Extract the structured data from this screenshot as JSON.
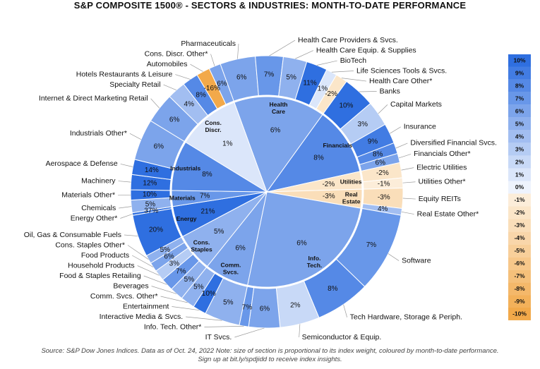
{
  "chart_data": {
    "type": "sunburst",
    "title": "S&P COMPOSITE 1500® - SECTORS & INDUSTRIES: MONTH-TO-DATE PERFORMANCE",
    "footer_line1": "Source: S&P Dow Jones Indices. Data as of Oct. 24, 2022 Note: size of section is proportional to its index weight, coloured by month-to-date performance.",
    "footer_line2": "Sign up at bit.ly/spdjidd to receive index insights.",
    "sectors": [
      {
        "name": "Health Care",
        "value": 6,
        "label_lines": [
          "Health",
          "Care"
        ],
        "weight": 15.5,
        "industries": [
          {
            "name": "Pharmaceuticals",
            "value": 6,
            "weight": 4.2
          },
          {
            "name": "Health Care Providers & Svcs.",
            "value": 7,
            "weight": 3.3
          },
          {
            "name": "Health Care Equip. & Supplies",
            "value": 5,
            "weight": 2.8
          },
          {
            "name": "BioTech",
            "value": 11,
            "weight": 2.5
          },
          {
            "name": "Life Sciences Tools & Svcs.",
            "value": 1,
            "weight": 1.3
          },
          {
            "name": "Health Care Other*",
            "value": -2,
            "weight": 1.4
          }
        ]
      },
      {
        "name": "Financials",
        "value": 8,
        "label_lines": [
          "Financials"
        ],
        "weight": 11.6,
        "industries": [
          {
            "name": "Banks",
            "value": 10,
            "weight": 3.8
          },
          {
            "name": "Capital Markets",
            "value": 3,
            "weight": 3.0
          },
          {
            "name": "Insurance",
            "value": 9,
            "weight": 2.4
          },
          {
            "name": "Diversified Financial Svcs.",
            "value": 8,
            "weight": 1.3
          },
          {
            "name": "Financials Other*",
            "value": 6,
            "weight": 1.1
          }
        ]
      },
      {
        "name": "Utilities",
        "value": -2,
        "label_lines": [
          "Utilities"
        ],
        "weight": 3.0,
        "industries": [
          {
            "name": "Electric Utilities",
            "value": -2,
            "weight": 1.8
          },
          {
            "name": "Utilities Other*",
            "value": -1,
            "weight": 1.2
          }
        ]
      },
      {
        "name": "Real Estate",
        "value": -3,
        "label_lines": [
          "Real",
          "Estate"
        ],
        "weight": 3.2,
        "industries": [
          {
            "name": "Equity REITs",
            "value": -3,
            "weight": 2.4
          },
          {
            "name": "Real Estate Other*",
            "value": 4,
            "weight": 0.8
          }
        ]
      },
      {
        "name": "Info. Tech.",
        "value": 6,
        "label_lines": [
          "Info.",
          "Tech."
        ],
        "weight": 25.5,
        "industries": [
          {
            "name": "Software",
            "value": 7,
            "weight": 9.5
          },
          {
            "name": "Tech Hardware, Storage & Periph.",
            "value": 8,
            "weight": 6.5
          },
          {
            "name": "Semiconductor & Equip.",
            "value": 2,
            "weight": 4.7
          },
          {
            "name": "IT Svcs.",
            "value": 6,
            "weight": 3.7
          },
          {
            "name": "Info. Tech. Other*",
            "value": 7,
            "weight": 1.1
          }
        ]
      },
      {
        "name": "Comm. Svcs.",
        "value": 6,
        "label_lines": [
          "Comm.",
          "Svcs."
        ],
        "weight": 7.5,
        "industries": [
          {
            "name": "Interactive Media & Svcs.",
            "value": 5,
            "weight": 4.2
          },
          {
            "name": "Entertainment",
            "value": 10,
            "weight": 1.6
          },
          {
            "name": "Comm. Svcs. Other*",
            "value": 5,
            "weight": 1.7
          }
        ]
      },
      {
        "name": "Cons. Staples",
        "value": 5,
        "label_lines": [
          "Cons.",
          "Staples"
        ],
        "weight": 6.5,
        "industries": [
          {
            "name": "Beverages",
            "value": 5,
            "weight": 1.6
          },
          {
            "name": "Food & Staples Retailing",
            "value": 7,
            "weight": 1.5
          },
          {
            "name": "Household Products",
            "value": 3,
            "weight": 1.3
          },
          {
            "name": "Food Products",
            "value": 6,
            "weight": 1.1
          },
          {
            "name": "Cons. Staples Other*",
            "value": 5,
            "weight": 1.0
          }
        ]
      },
      {
        "name": "Energy",
        "value": 21,
        "label_lines": [
          "Energy"
        ],
        "weight": 5.3,
        "industries": [
          {
            "name": "Oil, Gas & Consumable Fuels",
            "value": 20,
            "weight": 5.0
          },
          {
            "name": "Energy Other*",
            "value": 37,
            "weight": 0.3
          }
        ]
      },
      {
        "name": "Materials",
        "value": 7,
        "label_lines": [
          "Materials"
        ],
        "weight": 2.7,
        "industries": [
          {
            "name": "Chemicals",
            "value": 5,
            "weight": 1.5
          },
          {
            "name": "Materials Other*",
            "value": 10,
            "weight": 1.2
          }
        ]
      },
      {
        "name": "Industrials",
        "value": 8,
        "label_lines": [
          "Industrials"
        ],
        "weight": 8.5,
        "industries": [
          {
            "name": "Machinery",
            "value": 12,
            "weight": 1.8
          },
          {
            "name": "Aerospace & Defense",
            "value": 14,
            "weight": 1.8
          },
          {
            "name": "Industrials Other*",
            "value": 6,
            "weight": 4.9
          }
        ]
      },
      {
        "name": "Cons. Discr.",
        "value": 1,
        "label_lines": [
          "Cons.",
          "Discr."
        ],
        "weight": 10.7,
        "industries": [
          {
            "name": "Internet & Direct Marketing Retail",
            "value": 6,
            "weight": 3.6
          },
          {
            "name": "Specialty Retail",
            "value": 4,
            "weight": 2.2
          },
          {
            "name": "Hotels Restaurants & Leisure",
            "value": 8,
            "weight": 1.9
          },
          {
            "name": "Automobiles",
            "value": -16,
            "weight": 1.6
          },
          {
            "name": "Cons. Discr. Other*",
            "value": 6,
            "weight": 1.4
          }
        ]
      }
    ],
    "legend": [
      "10%",
      "9%",
      "8%",
      "7%",
      "6%",
      "5%",
      "4%",
      "3%",
      "2%",
      "1%",
      "0%",
      "-1%",
      "-2%",
      "-3%",
      "-4%",
      "-5%",
      "-6%",
      "-7%",
      "-8%",
      "-9%",
      "-10%"
    ],
    "color_scale": {
      "min": -10,
      "max": 10,
      "positive_hex": "#2f6fe0",
      "negative_hex": "#f2a94a",
      "zero_hex": "#ffffff"
    }
  }
}
